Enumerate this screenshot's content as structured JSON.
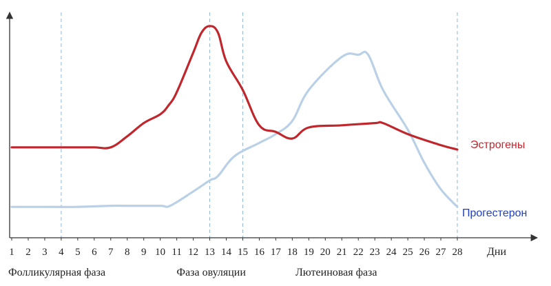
{
  "chart_data": {
    "type": "line",
    "title": "",
    "xlabel": "Дни",
    "ylabel": "",
    "xlim": [
      1,
      28
    ],
    "ylim": [
      0,
      100
    ],
    "ticks": [
      "1",
      "2",
      "3",
      "4",
      "5",
      "6",
      "7",
      "8",
      "9",
      "10",
      "11",
      "12",
      "13",
      "14",
      "15",
      "16",
      "17",
      "18",
      "19",
      "20",
      "21",
      "22",
      "23",
      "24",
      "25",
      "26",
      "27",
      "28"
    ],
    "phase_markers": [
      4,
      13,
      15,
      28
    ],
    "phases": [
      {
        "label": "Фолликулярная фаза",
        "x": 1
      },
      {
        "label": "Фаза овуляции",
        "x": 11.2
      },
      {
        "label": "Лютеиновая фаза",
        "x": 18.4
      }
    ],
    "grid": false,
    "series": [
      {
        "name": "Эстрогены",
        "color": "#c0272d",
        "points": [
          [
            1,
            41
          ],
          [
            2,
            41
          ],
          [
            3,
            41
          ],
          [
            4,
            41
          ],
          [
            5,
            41
          ],
          [
            6,
            41
          ],
          [
            7,
            41
          ],
          [
            8,
            46
          ],
          [
            9,
            52
          ],
          [
            10,
            56
          ],
          [
            10.5,
            60
          ],
          [
            11,
            66
          ],
          [
            12,
            84
          ],
          [
            12.5,
            93
          ],
          [
            13,
            96
          ],
          [
            13.5,
            93
          ],
          [
            14,
            80
          ],
          [
            15,
            67
          ],
          [
            16,
            51
          ],
          [
            17,
            48
          ],
          [
            18,
            45
          ],
          [
            19,
            50
          ],
          [
            21,
            51
          ],
          [
            23,
            52
          ],
          [
            23.5,
            52
          ],
          [
            25,
            47
          ],
          [
            27,
            42
          ],
          [
            28,
            40
          ]
        ]
      },
      {
        "name": "Прогестерон",
        "color": "#b9d0e6",
        "points": [
          [
            1,
            14
          ],
          [
            3,
            14
          ],
          [
            5,
            14
          ],
          [
            7,
            14.5
          ],
          [
            8,
            14.5
          ],
          [
            10,
            14.5
          ],
          [
            10.6,
            14.5
          ],
          [
            12,
            21
          ],
          [
            13,
            26
          ],
          [
            13.5,
            28
          ],
          [
            14.5,
            37
          ],
          [
            16,
            43
          ],
          [
            17,
            47
          ],
          [
            18,
            53
          ],
          [
            19,
            67
          ],
          [
            21,
            82
          ],
          [
            22,
            83
          ],
          [
            22.6,
            83
          ],
          [
            23.5,
            67
          ],
          [
            25,
            49
          ],
          [
            26,
            34
          ],
          [
            27,
            22
          ],
          [
            28,
            14
          ]
        ]
      }
    ],
    "legend": "right, at line ends"
  }
}
